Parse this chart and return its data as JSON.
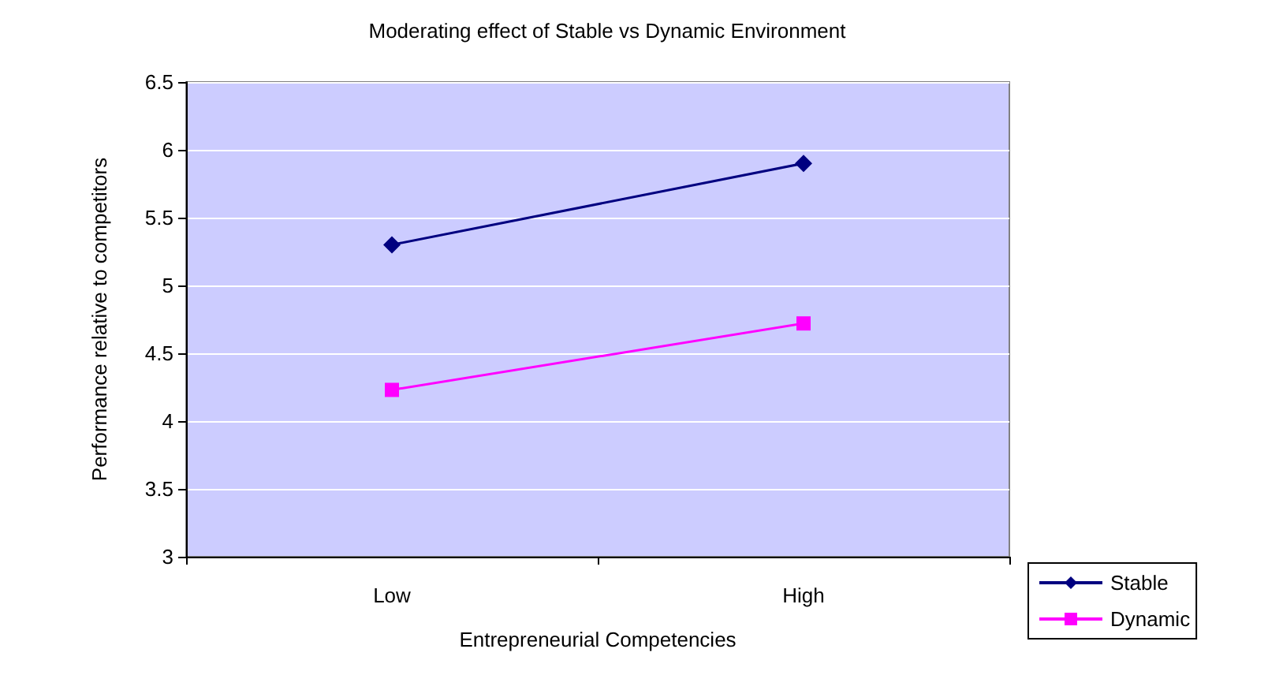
{
  "chart_data": {
    "type": "line",
    "title": "Moderating effect of Stable vs Dynamic Environment",
    "xlabel": "Entrepreneurial Competencies",
    "ylabel": "Performance relative to competitors",
    "categories": [
      "Low",
      "High"
    ],
    "series": [
      {
        "name": "Stable",
        "color": "#000080",
        "marker": "diamond",
        "values": [
          5.3,
          5.9
        ]
      },
      {
        "name": "Dynamic",
        "color": "#ff00ff",
        "marker": "square",
        "values": [
          4.23,
          4.72
        ]
      }
    ],
    "ylim": [
      3,
      6.5
    ],
    "yticks": [
      3,
      3.5,
      4,
      4.5,
      5,
      5.5,
      6,
      6.5
    ],
    "grid": "y",
    "legend": "bottom right",
    "line_style": "solid"
  }
}
